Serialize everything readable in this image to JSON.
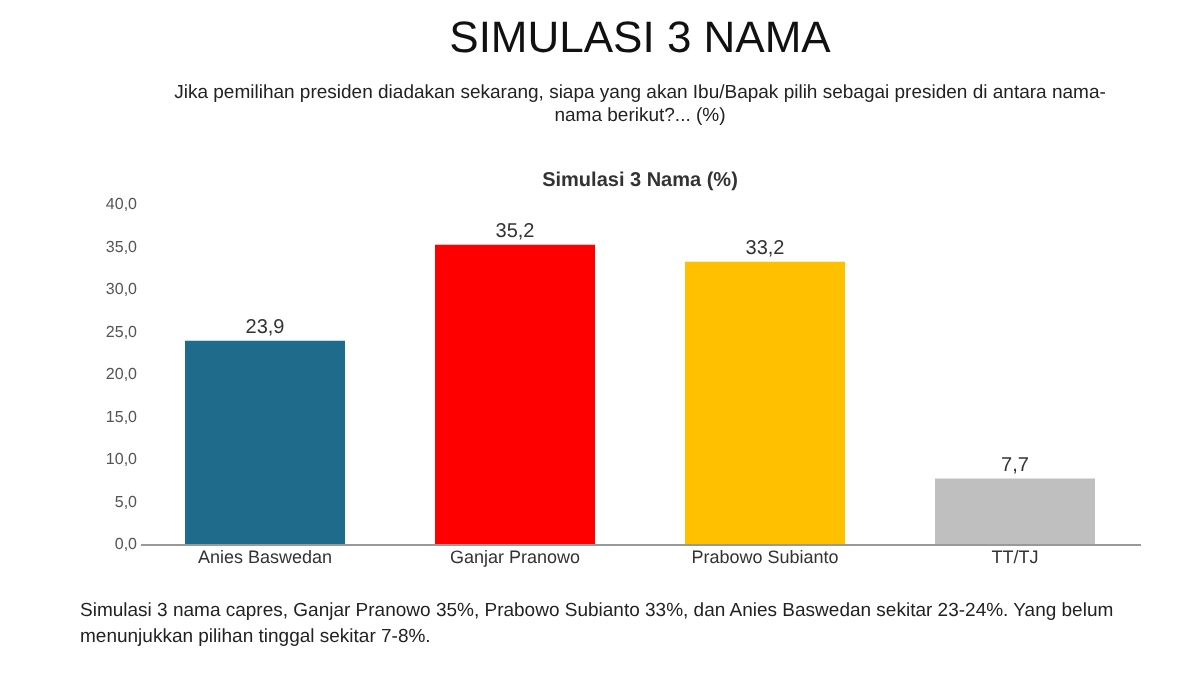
{
  "chart_data": {
    "type": "bar",
    "title": "SIMULASI 3 NAMA",
    "subtitle": "Jika pemilihan presiden diadakan sekarang, siapa yang akan Ibu/Bapak pilih sebagai presiden di antara nama-nama berikut?... (%)",
    "annotations": [
      "Simulasi 3 Nama (%)",
      "Simulasi 3 nama capres, Ganjar Pranowo 35%, Prabowo Subianto 33%, dan Anies Baswedan sekitar 23-24%. Yang belum menunjukkan pilihan tinggal sekitar 7-8%."
    ],
    "categories": [
      "Anies Baswedan",
      "Ganjar Pranowo",
      "Prabowo Subianto",
      "TT/TJ"
    ],
    "values": [
      23.9,
      35.2,
      33.2,
      7.7
    ],
    "colors": [
      "#1f6b8c",
      "#ff0000",
      "#ffc000",
      "#bfbfbf"
    ],
    "value_labels": [
      "23,9",
      "35,2",
      "33,2",
      "7,7"
    ],
    "ylim": [
      0,
      40
    ],
    "yticks": [
      {
        "value": 0,
        "label": "0,0"
      },
      {
        "value": 5,
        "label": "5,0"
      },
      {
        "value": 10,
        "label": "10,0"
      },
      {
        "value": 15,
        "label": "15,0"
      },
      {
        "value": 20,
        "label": "20,0"
      },
      {
        "value": 25,
        "label": "25,0"
      },
      {
        "value": 30,
        "label": "30,0"
      },
      {
        "value": 35,
        "label": "35,0"
      },
      {
        "value": 40,
        "label": "40,0"
      }
    ],
    "grid": false
  }
}
